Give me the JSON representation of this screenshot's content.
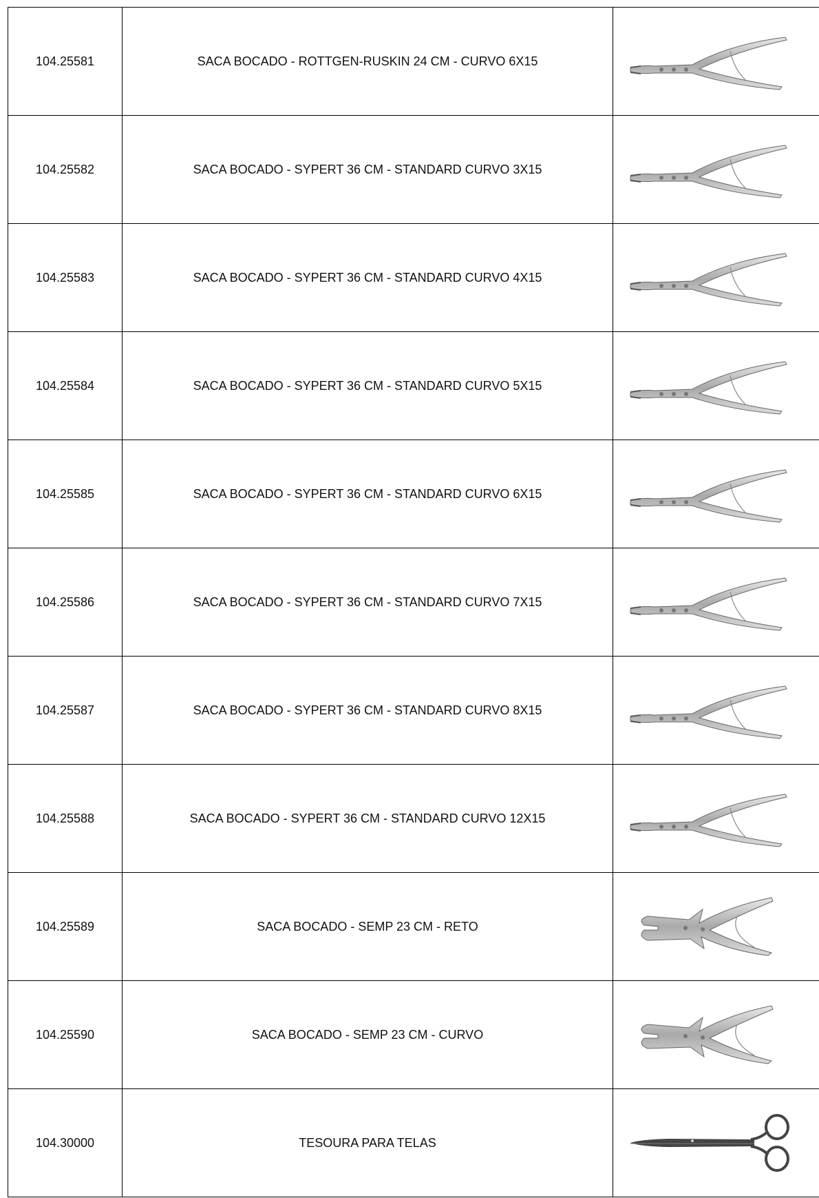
{
  "table": {
    "rows": [
      [
        "104.25581",
        "SACA BOCADO - ROTTGEN-RUSKIN 24 CM - CURVO 6X15"
      ],
      [
        "104.25582",
        "SACA BOCADO - SYPERT 36 CM - STANDARD CURVO 3X15"
      ],
      [
        "104.25583",
        "SACA BOCADO - SYPERT 36 CM - STANDARD CURVO 4X15"
      ],
      [
        "104.25584",
        "SACA BOCADO - SYPERT 36 CM - STANDARD CURVO 5X15"
      ],
      [
        "104.25585",
        "SACA BOCADO - SYPERT 36 CM - STANDARD CURVO 6X15"
      ],
      [
        "104.25586",
        "SACA BOCADO - SYPERT 36 CM - STANDARD CURVO 7X15"
      ],
      [
        "104.25587",
        "SACA BOCADO - SYPERT 36 CM - STANDARD CURVO 8X15"
      ],
      [
        "104.25588",
        "SACA BOCADO - SYPERT 36 CM - STANDARD CURVO 12X15"
      ],
      [
        "104.25589",
        "SACA BOCADO - SEMP 23 CM - RETO"
      ],
      [
        "104.25590",
        "SACA BOCADO - SEMP 23 CM - CURVO"
      ],
      [
        "104.30000",
        "TESOURA PARA TELAS"
      ]
    ]
  }
}
